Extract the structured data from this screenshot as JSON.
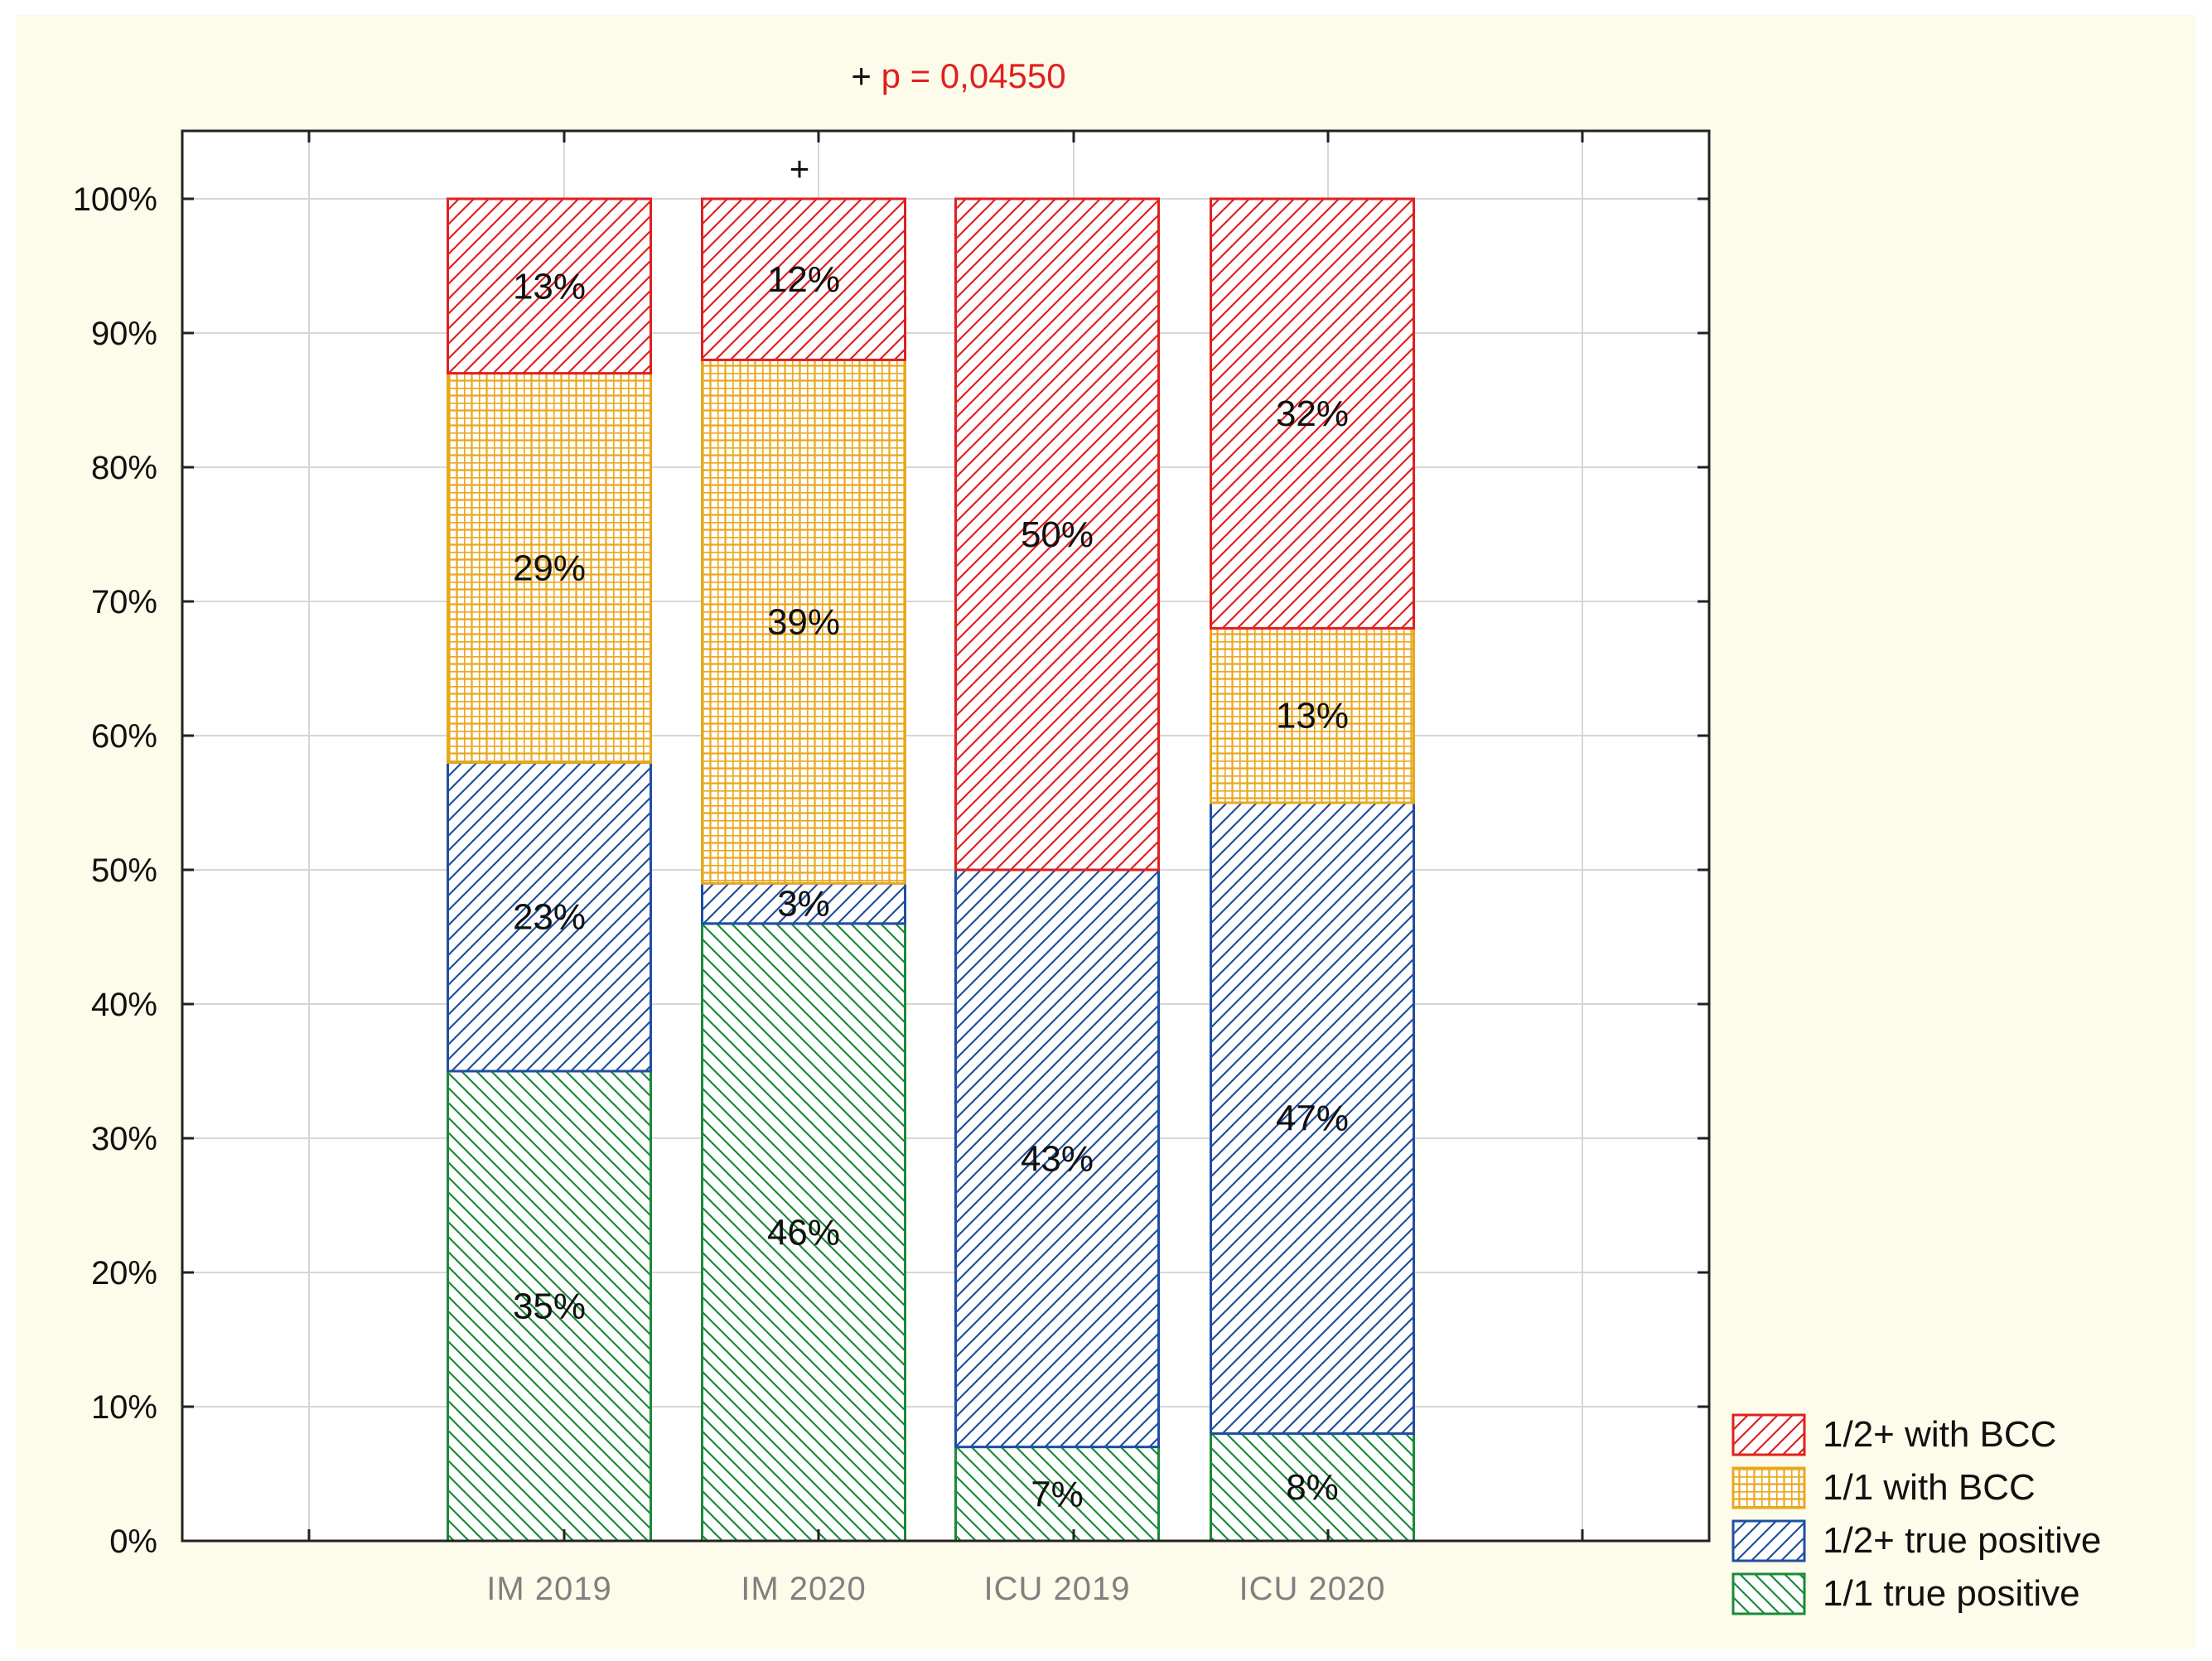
{
  "chart_data": {
    "type": "bar",
    "stacked": true,
    "categories": [
      "IM 2019",
      "IM 2020",
      "ICU 2019",
      "ICU 2020"
    ],
    "series": [
      {
        "name": "1/1 true positive",
        "values": [
          35,
          46,
          7,
          8
        ],
        "color": "#1a8a3a",
        "pattern": "hatch-backslash"
      },
      {
        "name": "1/2+ true positive",
        "values": [
          23,
          3,
          43,
          47
        ],
        "color": "#1f4fa0",
        "pattern": "hatch-slash"
      },
      {
        "name": "1/1 with BCC",
        "values": [
          29,
          39,
          0,
          13
        ],
        "color": "#e8a81c",
        "pattern": "grid"
      },
      {
        "name": "1/2+ with BCC",
        "values": [
          13,
          12,
          50,
          32
        ],
        "color": "#e02020",
        "pattern": "hatch-slash"
      }
    ],
    "segment_labels": [
      [
        "35%",
        "23%",
        "29%",
        "13%"
      ],
      [
        "46%",
        "3%",
        "39%",
        "12%"
      ],
      [
        "7%",
        "43%",
        "",
        "50%"
      ],
      [
        "8%",
        "47%",
        "13%",
        "32%"
      ]
    ],
    "y_ticks": [
      "0%",
      "10%",
      "20%",
      "30%",
      "40%",
      "50%",
      "60%",
      "70%",
      "80%",
      "90%",
      "100%"
    ],
    "ylim": [
      0,
      100
    ],
    "grid": true,
    "legend_position": "bottom-right",
    "legend_order": [
      "1/2+ with BCC",
      "1/1 with BCC",
      "1/2+ true positive",
      "1/1 true positive"
    ],
    "annotation": {
      "text_plus": "+",
      "text_p": "p = 0,04550",
      "marker": "+",
      "marker_category": "IM 2020"
    },
    "title": "",
    "xlabel": "",
    "ylabel": ""
  }
}
